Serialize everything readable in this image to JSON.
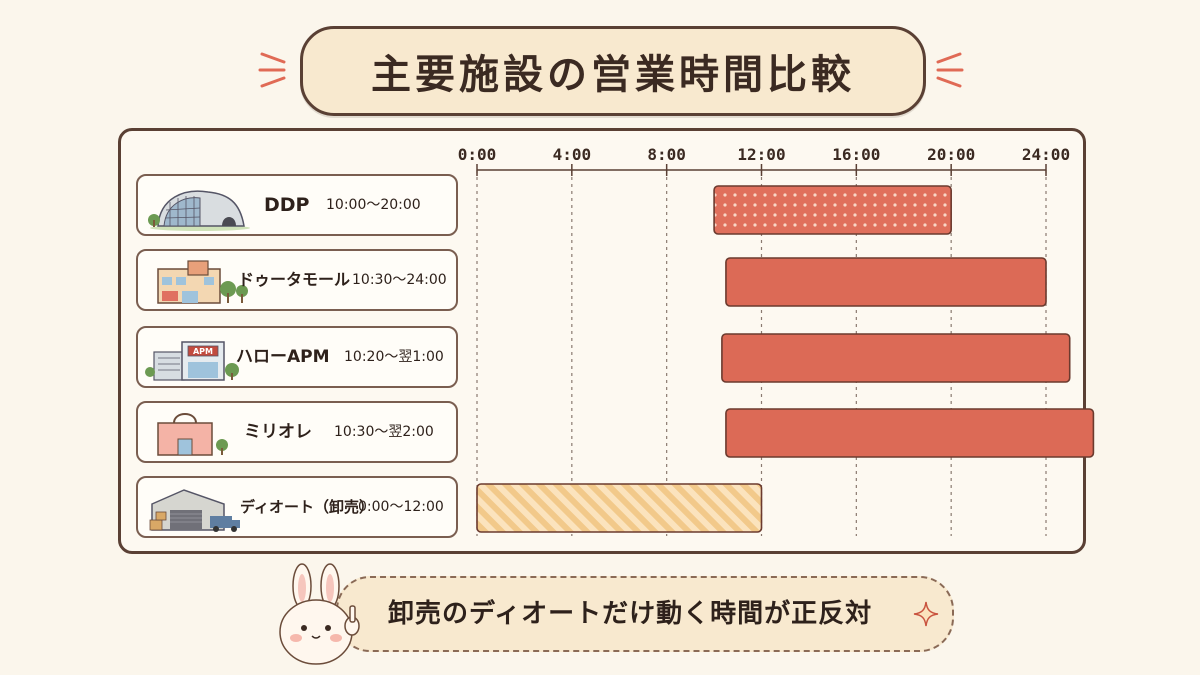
{
  "title": "主要施設の営業時間比較",
  "facilities": [
    {
      "name": "DDP",
      "hours": "10:00〜20:00",
      "icon": "ddp-building-icon"
    },
    {
      "name": "ドゥータモール",
      "hours": "10:30〜24:00",
      "icon": "mall-building-icon"
    },
    {
      "name": "ハローAPM",
      "hours": "10:20〜翌1:00",
      "icon": "apm-building-icon",
      "sign": "APM"
    },
    {
      "name": "ミリオレ",
      "hours": "10:30〜翌2:00",
      "icon": "shopping-bag-building-icon"
    },
    {
      "name": "ディオート（卸売）",
      "hours": "0:00〜12:00",
      "icon": "warehouse-icon"
    }
  ],
  "chart_data": {
    "type": "bar",
    "orientation": "horizontal-range",
    "x_axis_ticks": [
      "0:00",
      "4:00",
      "8:00",
      "12:00",
      "16:00",
      "20:00",
      "24:00"
    ],
    "xlim": [
      0,
      25
    ],
    "grid": true,
    "categories": [
      "DDP",
      "ドゥータモール",
      "ハローAPM",
      "ミリオレ",
      "ディオート（卸売）"
    ],
    "series": [
      {
        "values": [
          {
            "start": 10.0,
            "end": 20.0,
            "style": "dotted",
            "color": "#e0705c"
          },
          {
            "start": 10.5,
            "end": 24.0,
            "style": "solid",
            "color": "#dc6a56"
          },
          {
            "start": 10.33,
            "end": 25.0,
            "style": "solid",
            "color": "#dc6a56"
          },
          {
            "start": 10.5,
            "end": 26.0,
            "style": "solid",
            "color": "#dc6a56"
          },
          {
            "start": 0.0,
            "end": 12.0,
            "style": "striped",
            "color": "#f2c98a"
          }
        ]
      }
    ]
  },
  "banner": {
    "text": "卸売のディオートだけ動く時間が正反対",
    "icons": [
      "bunny-icon",
      "sparkle-icon"
    ]
  },
  "colors": {
    "accent": "#dc6a56",
    "wholesale": "#f2c98a",
    "outline": "#5a4034",
    "background": "#fbf6ec"
  }
}
